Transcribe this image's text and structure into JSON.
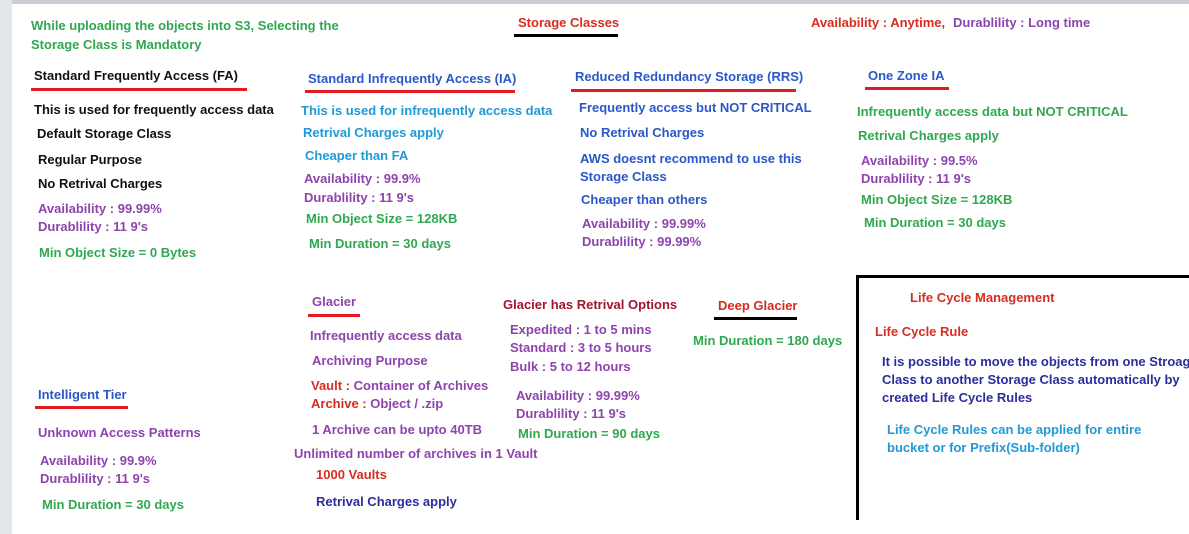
{
  "header": {
    "note_line1": "While uploading the objects into S3, Selecting the",
    "note_line2": "Storage Class is Mandatory",
    "title": "Storage Classes",
    "avail_label": "Availability : Anytime,",
    "durab_label": "Durablility : Long time"
  },
  "standard": {
    "title": "Standard Frequently Access (FA)",
    "line1": "This is used for frequently access data",
    "line2": "Default Storage Class",
    "line3": "Regular Purpose",
    "line4": "No Retrival Charges",
    "availability": "Availability : 99.99%",
    "durability": "Durablility : 11 9's",
    "min_size": "Min Object Size = 0 Bytes"
  },
  "standard_ia": {
    "title": "Standard Infrequently Access (IA)",
    "line1": "This is used for infrequently access data",
    "line2": "Retrival Charges apply",
    "line3": "Cheaper than FA",
    "availability": "Availability : 99.9%",
    "durability": "Durablility : 11 9's",
    "min_size": "Min Object Size = 128KB",
    "min_duration": "Min Duration = 30 days"
  },
  "rrs": {
    "title": "Reduced Redundancy Storage (RRS)",
    "line1": "Frequently access but NOT CRITICAL",
    "line2": "No Retrival Charges",
    "line3a": "AWS doesnt recommend to use this",
    "line3b": "Storage Class",
    "line4": "Cheaper than others",
    "availability": "Availability : 99.99%",
    "durability": "Durablility : 99.99%"
  },
  "one_zone": {
    "title": "One Zone IA",
    "line1": "Infrequently access data but NOT CRITICAL",
    "line2": "Retrival Charges apply",
    "availability": "Availability : 99.5%",
    "durability": "Durablility : 11 9's",
    "min_size": "Min Object Size = 128KB",
    "min_duration": "Min Duration = 30 days"
  },
  "intelligent": {
    "title": "Intelligent Tier",
    "line1": "Unknown Access Patterns",
    "availability": "Availability : 99.9%",
    "durability": "Durablility : 11 9's",
    "min_duration": "Min Duration = 30 days"
  },
  "glacier": {
    "title": "Glacier",
    "line1": "Infrequently access data",
    "line2": "Archiving Purpose",
    "vault_label": "Vault :",
    "vault_text": "Container of Archives",
    "archive_label": "Archive :",
    "archive_text": "Object / .zip",
    "archive_size": "1 Archive can be upto 40TB",
    "unlimited": "Unlimited number of archives in 1 Vault",
    "vaults": "1000 Vaults",
    "charges": "Retrival Charges apply"
  },
  "retrieval": {
    "title": "Glacier has Retrival Options",
    "expedited": "Expedited : 1 to 5 mins",
    "standard": "Standard : 3 to 5 hours",
    "bulk": "Bulk : 5 to 12 hours",
    "availability": "Availability : 99.99%",
    "durability": "Durablility : 11 9's",
    "min_duration": "Min Duration = 90 days"
  },
  "deep_glacier": {
    "title": "Deep Glacier",
    "min_duration": "Min Duration = 180 days"
  },
  "lifecycle": {
    "title": "Life Cycle Management",
    "rule_title": "Life Cycle Rule",
    "desc1": "It is possible to move the objects from one Stroag",
    "desc2": "Class to another Storage Class automatically by",
    "desc3": "created Life Cycle Rules",
    "apply1": "Life Cycle Rules can be applied for entire",
    "apply2": "bucket or for Prefix(Sub-folder)"
  }
}
